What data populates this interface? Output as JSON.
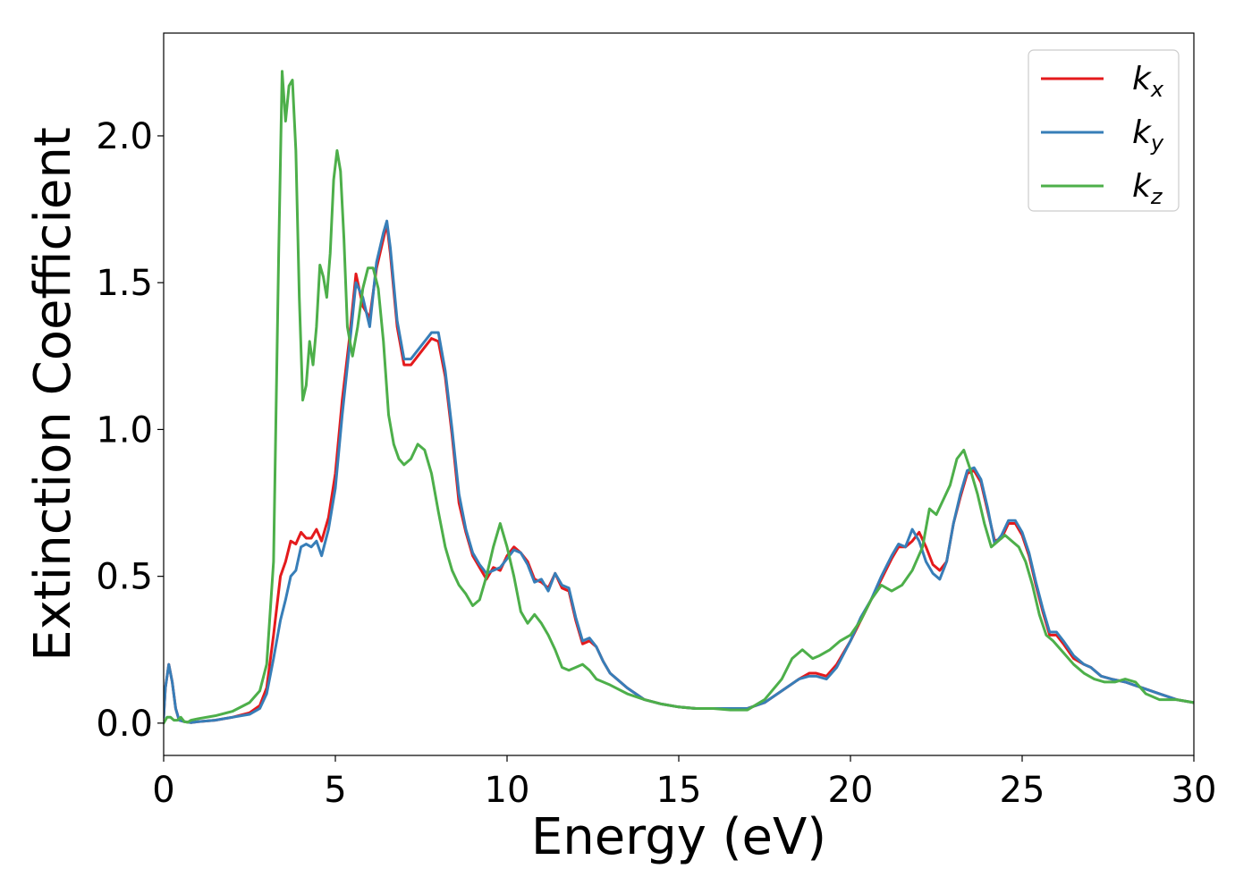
{
  "chart_data": {
    "type": "line",
    "title": "",
    "xlabel": "Energy (eV)",
    "ylabel": "Extinction Coefficient",
    "xlim": [
      0,
      30
    ],
    "ylim": [
      -0.11,
      2.35
    ],
    "xticks": [
      0,
      5,
      10,
      15,
      20,
      25,
      30
    ],
    "xtick_labels": [
      "0",
      "5",
      "10",
      "15",
      "20",
      "25",
      "30"
    ],
    "yticks": [
      0.0,
      0.5,
      1.0,
      1.5,
      2.0
    ],
    "ytick_labels": [
      "0.0",
      "0.5",
      "1.0",
      "1.5",
      "2.0"
    ],
    "grid": false,
    "legend_position": "top-right",
    "series": [
      {
        "name": "k",
        "subscript": "x",
        "color": "#e41a1c",
        "x": [
          0,
          0.05,
          0.15,
          0.25,
          0.35,
          0.45,
          0.6,
          0.8,
          1.0,
          1.5,
          2.0,
          2.5,
          2.8,
          3.0,
          3.2,
          3.4,
          3.55,
          3.7,
          3.85,
          4.0,
          4.15,
          4.3,
          4.45,
          4.6,
          4.8,
          5.0,
          5.2,
          5.4,
          5.6,
          5.8,
          6.0,
          6.2,
          6.4,
          6.5,
          6.6,
          6.8,
          7.0,
          7.2,
          7.4,
          7.6,
          7.8,
          8.0,
          8.2,
          8.4,
          8.6,
          8.8,
          9.0,
          9.2,
          9.4,
          9.6,
          9.8,
          10.0,
          10.2,
          10.4,
          10.6,
          10.8,
          11.0,
          11.2,
          11.4,
          11.6,
          11.8,
          12.0,
          12.2,
          12.4,
          12.6,
          12.8,
          13.0,
          13.5,
          14.0,
          14.5,
          15.0,
          15.5,
          16.0,
          16.5,
          17.0,
          17.5,
          18.0,
          18.5,
          18.8,
          19.0,
          19.3,
          19.6,
          20.0,
          20.3,
          20.6,
          20.9,
          21.2,
          21.4,
          21.6,
          21.8,
          22.0,
          22.2,
          22.4,
          22.6,
          22.8,
          23.0,
          23.2,
          23.4,
          23.6,
          23.8,
          24.0,
          24.2,
          24.4,
          24.6,
          24.8,
          25.0,
          25.2,
          25.4,
          25.6,
          25.8,
          26.0,
          26.2,
          26.5,
          26.8,
          27.0,
          27.3,
          27.6,
          28.0,
          28.5,
          29.0,
          29.5,
          30.0
        ],
        "y": [
          0.02,
          0.12,
          0.2,
          0.14,
          0.05,
          0.01,
          0.005,
          0.002,
          0.005,
          0.01,
          0.02,
          0.035,
          0.06,
          0.12,
          0.3,
          0.5,
          0.55,
          0.62,
          0.61,
          0.65,
          0.63,
          0.63,
          0.66,
          0.62,
          0.7,
          0.85,
          1.1,
          1.3,
          1.53,
          1.42,
          1.38,
          1.55,
          1.65,
          1.7,
          1.6,
          1.35,
          1.22,
          1.22,
          1.25,
          1.28,
          1.31,
          1.3,
          1.18,
          0.98,
          0.75,
          0.65,
          0.57,
          0.53,
          0.49,
          0.53,
          0.52,
          0.57,
          0.6,
          0.58,
          0.55,
          0.49,
          0.48,
          0.46,
          0.51,
          0.46,
          0.45,
          0.35,
          0.27,
          0.28,
          0.26,
          0.21,
          0.17,
          0.12,
          0.08,
          0.065,
          0.055,
          0.05,
          0.05,
          0.05,
          0.05,
          0.07,
          0.11,
          0.15,
          0.17,
          0.17,
          0.16,
          0.2,
          0.28,
          0.35,
          0.42,
          0.49,
          0.56,
          0.6,
          0.6,
          0.62,
          0.65,
          0.6,
          0.54,
          0.52,
          0.55,
          0.68,
          0.77,
          0.85,
          0.86,
          0.82,
          0.72,
          0.62,
          0.63,
          0.68,
          0.68,
          0.64,
          0.57,
          0.47,
          0.38,
          0.3,
          0.3,
          0.27,
          0.22,
          0.2,
          0.19,
          0.16,
          0.15,
          0.14,
          0.12,
          0.1,
          0.08,
          0.07
        ]
      },
      {
        "name": "k",
        "subscript": "y",
        "color": "#377eb8",
        "x": [
          0,
          0.05,
          0.15,
          0.25,
          0.35,
          0.45,
          0.6,
          0.8,
          1.0,
          1.5,
          2.0,
          2.5,
          2.8,
          3.0,
          3.2,
          3.4,
          3.55,
          3.7,
          3.85,
          4.0,
          4.15,
          4.3,
          4.45,
          4.6,
          4.8,
          5.0,
          5.2,
          5.4,
          5.6,
          5.8,
          6.0,
          6.2,
          6.4,
          6.5,
          6.6,
          6.8,
          7.0,
          7.2,
          7.4,
          7.6,
          7.8,
          8.0,
          8.2,
          8.4,
          8.6,
          8.8,
          9.0,
          9.2,
          9.4,
          9.6,
          9.8,
          10.0,
          10.2,
          10.4,
          10.6,
          10.8,
          11.0,
          11.2,
          11.4,
          11.6,
          11.8,
          12.0,
          12.2,
          12.4,
          12.6,
          12.8,
          13.0,
          13.5,
          14.0,
          14.5,
          15.0,
          15.5,
          16.0,
          16.5,
          17.0,
          17.5,
          18.0,
          18.5,
          18.8,
          19.0,
          19.3,
          19.6,
          20.0,
          20.3,
          20.6,
          20.9,
          21.2,
          21.4,
          21.6,
          21.8,
          22.0,
          22.2,
          22.4,
          22.6,
          22.8,
          23.0,
          23.2,
          23.4,
          23.6,
          23.8,
          24.0,
          24.2,
          24.4,
          24.6,
          24.8,
          25.0,
          25.2,
          25.4,
          25.6,
          25.8,
          26.0,
          26.2,
          26.5,
          26.8,
          27.0,
          27.3,
          27.6,
          28.0,
          28.5,
          29.0,
          29.5,
          30.0
        ],
        "y": [
          0.02,
          0.12,
          0.2,
          0.14,
          0.05,
          0.01,
          0.005,
          0.002,
          0.005,
          0.01,
          0.02,
          0.03,
          0.05,
          0.1,
          0.22,
          0.35,
          0.42,
          0.5,
          0.52,
          0.6,
          0.61,
          0.6,
          0.62,
          0.57,
          0.66,
          0.8,
          1.05,
          1.27,
          1.5,
          1.45,
          1.35,
          1.57,
          1.67,
          1.71,
          1.62,
          1.37,
          1.24,
          1.24,
          1.27,
          1.3,
          1.33,
          1.33,
          1.2,
          1.0,
          0.78,
          0.66,
          0.58,
          0.54,
          0.51,
          0.52,
          0.53,
          0.56,
          0.59,
          0.58,
          0.54,
          0.48,
          0.49,
          0.45,
          0.51,
          0.47,
          0.46,
          0.36,
          0.28,
          0.29,
          0.26,
          0.21,
          0.17,
          0.12,
          0.08,
          0.065,
          0.055,
          0.05,
          0.05,
          0.05,
          0.05,
          0.07,
          0.11,
          0.15,
          0.16,
          0.16,
          0.15,
          0.19,
          0.28,
          0.36,
          0.42,
          0.5,
          0.57,
          0.61,
          0.6,
          0.66,
          0.62,
          0.55,
          0.51,
          0.49,
          0.55,
          0.68,
          0.78,
          0.86,
          0.87,
          0.83,
          0.73,
          0.61,
          0.64,
          0.69,
          0.69,
          0.65,
          0.58,
          0.48,
          0.39,
          0.31,
          0.31,
          0.28,
          0.23,
          0.2,
          0.19,
          0.16,
          0.15,
          0.14,
          0.12,
          0.1,
          0.08,
          0.07
        ]
      },
      {
        "name": "k",
        "subscript": "z",
        "color": "#4daf4a",
        "x": [
          0,
          0.1,
          0.2,
          0.3,
          0.4,
          0.5,
          0.6,
          0.7,
          0.8,
          1.0,
          1.5,
          2.0,
          2.5,
          2.8,
          3.0,
          3.2,
          3.35,
          3.45,
          3.55,
          3.65,
          3.75,
          3.85,
          3.95,
          4.05,
          4.15,
          4.25,
          4.35,
          4.45,
          4.55,
          4.65,
          4.75,
          4.85,
          4.95,
          5.05,
          5.15,
          5.25,
          5.35,
          5.5,
          5.65,
          5.8,
          5.95,
          6.1,
          6.25,
          6.4,
          6.55,
          6.7,
          6.85,
          7.0,
          7.2,
          7.4,
          7.6,
          7.8,
          8.0,
          8.2,
          8.4,
          8.6,
          8.8,
          9.0,
          9.2,
          9.4,
          9.6,
          9.8,
          10.0,
          10.2,
          10.4,
          10.6,
          10.8,
          11.0,
          11.2,
          11.4,
          11.6,
          11.8,
          12.0,
          12.2,
          12.4,
          12.6,
          12.8,
          13.0,
          13.5,
          14.0,
          14.5,
          15.0,
          15.5,
          16.0,
          16.5,
          17.0,
          17.5,
          18.0,
          18.3,
          18.6,
          18.9,
          19.1,
          19.4,
          19.7,
          20.0,
          20.3,
          20.6,
          20.9,
          21.2,
          21.5,
          21.8,
          22.1,
          22.3,
          22.5,
          22.7,
          22.9,
          23.1,
          23.3,
          23.5,
          23.7,
          23.9,
          24.1,
          24.3,
          24.5,
          24.7,
          24.9,
          25.1,
          25.3,
          25.5,
          25.7,
          25.9,
          26.2,
          26.5,
          26.8,
          27.1,
          27.4,
          27.7,
          28.0,
          28.3,
          28.6,
          29.0,
          29.5,
          30.0
        ],
        "y": [
          0.0,
          0.02,
          0.02,
          0.01,
          0.01,
          0.02,
          0.005,
          0.003,
          0.01,
          0.015,
          0.025,
          0.04,
          0.07,
          0.11,
          0.2,
          0.55,
          1.6,
          2.22,
          2.05,
          2.17,
          2.19,
          1.95,
          1.45,
          1.1,
          1.15,
          1.3,
          1.22,
          1.35,
          1.56,
          1.52,
          1.45,
          1.6,
          1.85,
          1.95,
          1.88,
          1.65,
          1.35,
          1.25,
          1.35,
          1.48,
          1.55,
          1.55,
          1.48,
          1.3,
          1.05,
          0.95,
          0.9,
          0.88,
          0.9,
          0.95,
          0.93,
          0.85,
          0.72,
          0.6,
          0.52,
          0.47,
          0.44,
          0.4,
          0.42,
          0.5,
          0.6,
          0.68,
          0.6,
          0.5,
          0.38,
          0.34,
          0.37,
          0.34,
          0.3,
          0.25,
          0.19,
          0.18,
          0.19,
          0.2,
          0.18,
          0.15,
          0.14,
          0.13,
          0.1,
          0.08,
          0.065,
          0.055,
          0.05,
          0.05,
          0.045,
          0.045,
          0.08,
          0.15,
          0.22,
          0.25,
          0.22,
          0.23,
          0.25,
          0.28,
          0.3,
          0.35,
          0.42,
          0.47,
          0.45,
          0.47,
          0.52,
          0.6,
          0.73,
          0.71,
          0.76,
          0.81,
          0.9,
          0.93,
          0.86,
          0.78,
          0.68,
          0.6,
          0.62,
          0.64,
          0.62,
          0.6,
          0.55,
          0.47,
          0.37,
          0.3,
          0.28,
          0.24,
          0.2,
          0.17,
          0.15,
          0.14,
          0.14,
          0.15,
          0.14,
          0.1,
          0.08,
          0.08,
          0.07
        ]
      }
    ]
  }
}
